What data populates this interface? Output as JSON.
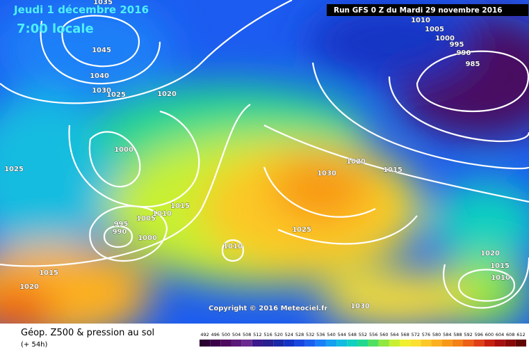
{
  "header": {
    "date": "Jeudi 1 décembre 2016",
    "time": "7:00 locale",
    "run": "Run GFS 0 Z du Mardi 29 novembre 2016"
  },
  "copyright": "Copyright © 2016 Meteociel.fr",
  "footer": {
    "title": "Géop. Z500 & pression au sol",
    "lead": "(+ 54h)"
  },
  "isobars": [
    "1035",
    "1045",
    "1040",
    "1030",
    "1025",
    "1020",
    "1000",
    "1025",
    "995",
    "990",
    "1005",
    "1010",
    "1015",
    "1000",
    "1010",
    "1015",
    "1020",
    "1030",
    "1020",
    "1015",
    "1025",
    "1030",
    "1010",
    "1005",
    "1000",
    "995",
    "990",
    "985",
    "1020",
    "1015",
    "1010"
  ],
  "legend": {
    "values": [
      492,
      496,
      500,
      504,
      508,
      512,
      516,
      520,
      524,
      528,
      532,
      536,
      540,
      544,
      548,
      552,
      556,
      560,
      564,
      568,
      572,
      576,
      580,
      584,
      588,
      592,
      596,
      600,
      604,
      608,
      612
    ],
    "colors": [
      "#2a0030",
      "#3c0048",
      "#4e0a5e",
      "#5c1a78",
      "#6a2a90",
      "#3a1a8c",
      "#28208e",
      "#1a2aa6",
      "#1434c4",
      "#1848e0",
      "#1c60f0",
      "#1a80f8",
      "#16a0f0",
      "#12bce0",
      "#10d0c0",
      "#20d890",
      "#50e060",
      "#90e840",
      "#c8f030",
      "#f0f030",
      "#fce030",
      "#fcc828",
      "#fcb020",
      "#f89818",
      "#f48018",
      "#ec6018",
      "#e04018",
      "#c82010",
      "#a81010",
      "#880808",
      "#600404"
    ]
  }
}
